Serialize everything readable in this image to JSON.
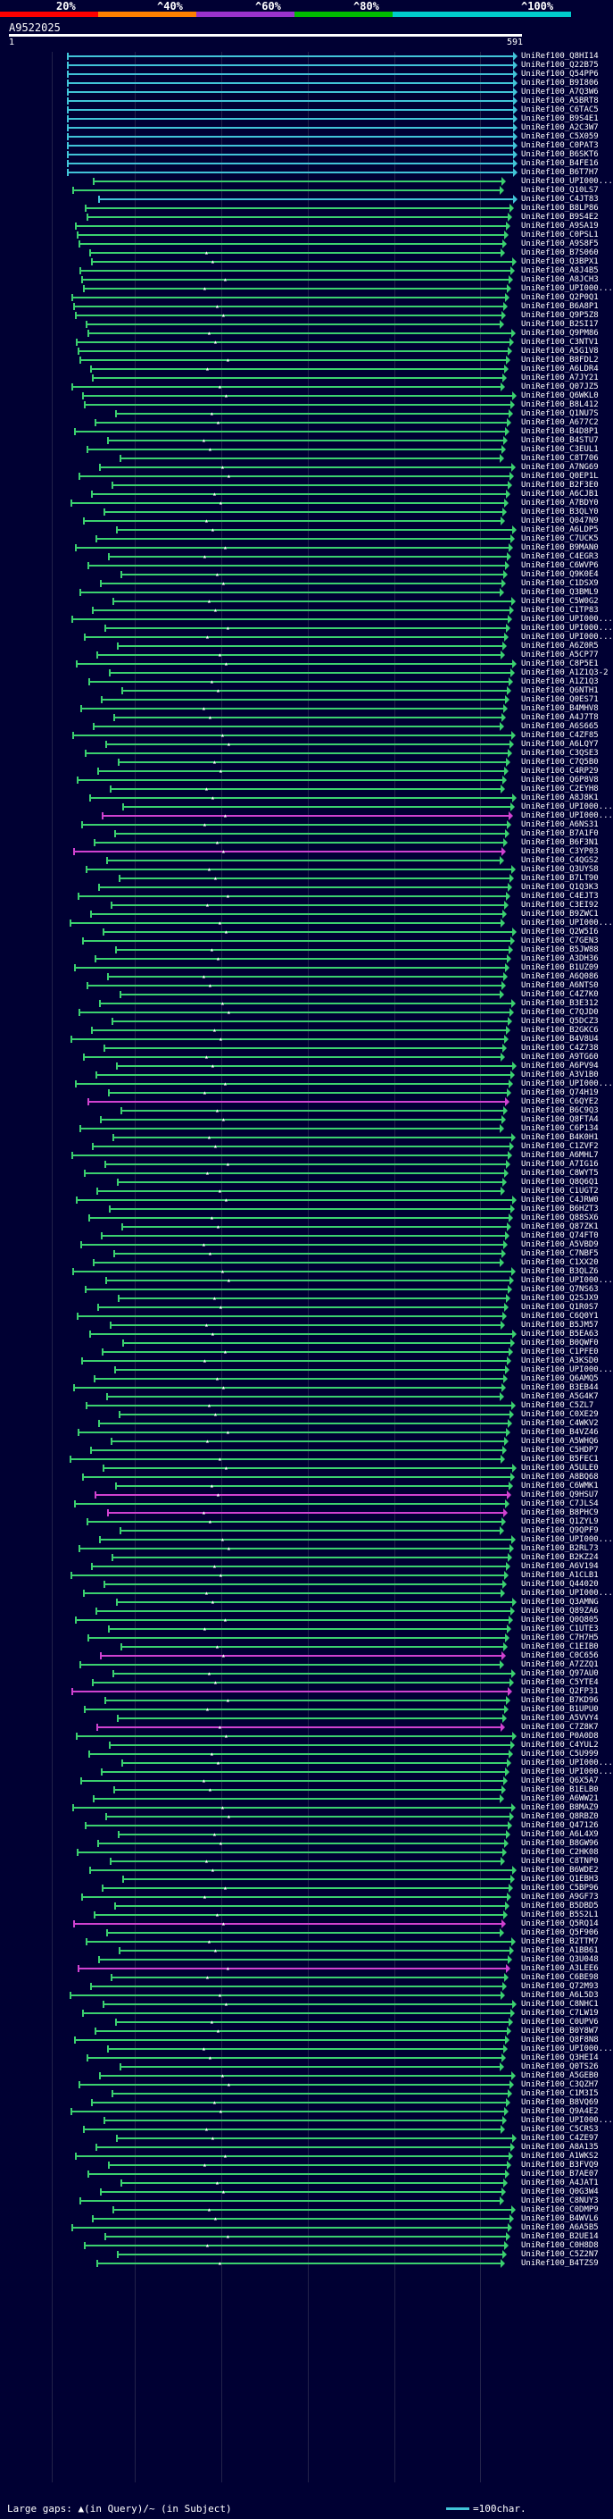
{
  "scale": {
    "labels": [
      "20%",
      "^40%",
      "^60%",
      "^80%",
      "^100%"
    ],
    "colors": [
      "#ff0000",
      "#ff8000",
      "#9933cc",
      "#00bb00",
      "#00cccc"
    ]
  },
  "query": {
    "id": "A9522025",
    "start": "1",
    "end": "591"
  },
  "colors": {
    "cyan": "#41c4d8",
    "green": "#3bd16f",
    "magenta": "#d042d0",
    "background": "#000033"
  },
  "hits": [
    "UniRef100_Q8HI14",
    "UniRef100_Q22B75",
    "UniRef100_Q54PP6",
    "UniRef100_B9I806",
    "UniRef100_A7Q3W6",
    "UniRef100_A5BRT8",
    "UniRef100_C6TAC5",
    "UniRef100_B9S4E1",
    "UniRef100_A2C3W7",
    "UniRef100_C5X059",
    "UniRef100_C0PAT3",
    "UniRef100_B6SKT6",
    "UniRef100_B4FE16",
    "UniRef100_B6T7H7",
    "UniRef100_UPI000...",
    "UniRef100_Q10LS7",
    "UniRef100_C4JT83",
    "UniRef100_B8LP86",
    "UniRef100_B9S4E2",
    "UniRef100_A9SA19",
    "UniRef100_C0PSL1",
    "UniRef100_A9S8F5",
    "UniRef100_B7S060",
    "UniRef100_Q3BPX1",
    "UniRef100_A8J4B5",
    "UniRef100_A8JCH3",
    "UniRef100_UPI000...",
    "UniRef100_Q2P0Q1",
    "UniRef100_B6A8P1",
    "UniRef100_Q9P5Z8",
    "UniRef100_B2SI17",
    "UniRef100_Q9PM86",
    "UniRef100_C3NTV1",
    "UniRef100_A5G1V8",
    "UniRef100_B8FDL2",
    "UniRef100_A6LDR4",
    "UniRef100_A7JY21",
    "UniRef100_Q07JZ5",
    "UniRef100_Q6WKL0",
    "UniRef100_B8L412",
    "UniRef100_Q1NU7S",
    "UniRef100_A677C2",
    "UniRef100_B4D8P1",
    "UniRef100_B4STU7",
    "UniRef100_C3EUL1",
    "UniRef100_C8T706",
    "UniRef100_A7NG69",
    "UniRef100_Q0EP1L",
    "UniRef100_B2F3E0",
    "UniRef100_A6CJB1",
    "UniRef100_A7BDY0",
    "UniRef100_B3QLY0",
    "UniRef100_Q047N9",
    "UniRef100_A6LDP5",
    "UniRef100_C7UCK5",
    "UniRef100_B9MAN0",
    "UniRef100_C4EGR3",
    "UniRef100_C6WVP6",
    "UniRef100_Q9K0E4",
    "UniRef100_C1DSX9",
    "UniRef100_Q3BML9",
    "UniRef100_C5W0G2",
    "UniRef100_C1TP83",
    "UniRef100_UPI000...",
    "UniRef100_UPI000...",
    "UniRef100_UPI000...",
    "UniRef100_A6Z0R5",
    "UniRef100_A5CP77",
    "UniRef100_C8P5E1",
    "UniRef100_A1Z1Q3-2",
    "UniRef100_A1Z1Q3",
    "UniRef100_Q6NTH1",
    "UniRef100_Q0ES71",
    "UniRef100_B4MHV8",
    "UniRef100_A4J7T8",
    "UniRef100_A6S665",
    "UniRef100_C4ZF85",
    "UniRef100_A6LQY7",
    "UniRef100_C3QSE3",
    "UniRef100_C7Q5B0",
    "UniRef100_C4RP29",
    "UniRef100_Q6P8V8",
    "UniRef100_C2EYH8",
    "UniRef100_A8J8K1",
    "UniRef100_UPI000...",
    "UniRef100_UPI000...",
    "UniRef100_A6NS31",
    "UniRef100_B7A1F0",
    "UniRef100_B6F3N1",
    "UniRef100_C3YP03",
    "UniRef100_C4QGS2",
    "UniRef100_Q3UYS8",
    "UniRef100_B7LT90",
    "UniRef100_Q1Q3K3",
    "UniRef100_C4EJT3",
    "UniRef100_C3EI92",
    "UniRef100_B9ZWC1",
    "UniRef100_UPI000...",
    "UniRef100_Q2W5I6",
    "UniRef100_C7GEN3",
    "UniRef100_B5JW88",
    "UniRef100_A3DH36",
    "UniRef100_B1UZ09",
    "UniRef100_A6Q086",
    "UniRef100_A6NTS0",
    "UniRef100_C4Z7K0",
    "UniRef100_B3E312",
    "UniRef100_C7QJD0",
    "UniRef100_Q5DCZ3",
    "UniRef100_B2GKC6",
    "UniRef100_B4V8U4",
    "UniRef100_C4Z738",
    "UniRef100_A9TG60",
    "UniRef100_A6PV94",
    "UniRef100_A3V1B0",
    "UniRef100_UPI000...",
    "UniRef100_Q74H19",
    "UniRef100_C6QYE2",
    "UniRef100_B6C9Q3",
    "UniRef100_Q8FTA4",
    "UniRef100_C6P134",
    "UniRef100_B4K0H1",
    "UniRef100_C1ZVF2",
    "UniRef100_A6MHL7",
    "UniRef100_A7IG16",
    "UniRef100_C8WYT5",
    "UniRef100_Q8Q6Q1",
    "UniRef100_C1UGT2",
    "UniRef100_C4JRW0",
    "UniRef100_B6HZT3",
    "UniRef100_Q88SX6",
    "UniRef100_Q87ZK1",
    "UniRef100_Q74FT0",
    "UniRef100_A5VBD9",
    "UniRef100_C7NBF5",
    "UniRef100_C1XX20",
    "UniRef100_B3QLZ6",
    "UniRef100_UPI000...",
    "UniRef100_Q7NS63",
    "UniRef100_Q2SJX9",
    "UniRef100_Q1R0S7",
    "UniRef100_C6Q0Y1",
    "UniRef100_B5JM57",
    "UniRef100_B5EA63",
    "UniRef100_B0QWF0",
    "UniRef100_C1PFE0",
    "UniRef100_A3KSD0",
    "UniRef100_UPI000...",
    "UniRef100_Q6AMQ5",
    "UniRef100_B3EB44",
    "UniRef100_A5G4K7",
    "UniRef100_C5ZL7",
    "UniRef100_C0XE29",
    "UniRef100_C4WKV2",
    "UniRef100_B4VZ46",
    "UniRef100_A5WHQ6",
    "UniRef100_C5HDP7",
    "UniRef100_B5FEC1",
    "UniRef100_A5ULE0",
    "UniRef100_A8BQ68",
    "UniRef100_C6WMK1",
    "UniRef100_Q9HSU7",
    "UniRef100_C7JLS4",
    "UniRef100_B8PHC9",
    "UniRef100_Q1ZYL9",
    "UniRef100_Q9QPF9",
    "UniRef100_UPI000...",
    "UniRef100_B2RL73",
    "UniRef100_B2KZ24",
    "UniRef100_A6V194",
    "UniRef100_A1CLB1",
    "UniRef100_Q44020",
    "UniRef100_UPI000...",
    "UniRef100_Q3AMNG",
    "UniRef100_Q89ZA6",
    "UniRef100_Q0Q805",
    "UniRef100_C1UTE3",
    "UniRef100_C7H7H5",
    "UniRef100_C1EIB0",
    "UniRef100_C0C656",
    "UniRef100_A7ZZQ1",
    "UniRef100_Q97AU0",
    "UniRef100_C5YTE4",
    "UniRef100_Q2FP31",
    "UniRef100_B7KD96",
    "UniRef100_B1UPU0",
    "UniRef100_A5VVY4",
    "UniRef100_C7Z8K7",
    "UniRef100_P0A0D8",
    "UniRef100_C4YUL2",
    "UniRef100_C5U999",
    "UniRef100_UPI000...",
    "UniRef100_UPI000...",
    "UniRef100_Q6X5A7",
    "UniRef100_B1ELB0",
    "UniRef100_A6WW21",
    "UniRef100_B8MAZ9",
    "UniRef100_Q8RBZ0",
    "UniRef100_Q47126",
    "UniRef100_A6L4X9",
    "UniRef100_B8GW96",
    "UniRef100_C2HK08",
    "UniRef100_C8TNP0",
    "UniRef100_B6WDE2",
    "UniRef100_Q1EBH3",
    "UniRef100_C5BP96",
    "UniRef100_A9GF73",
    "UniRef100_B5DBD5",
    "UniRef100_B5S2L1",
    "UniRef100_Q5RQ14",
    "UniRef100_Q5F906",
    "UniRef100_B2TTM7",
    "UniRef100_A1BB61",
    "UniRef100_Q3U048",
    "UniRef100_A3LEE6",
    "UniRef100_C6BE98",
    "UniRef100_Q72M93",
    "UniRef100_A6L5D3",
    "UniRef100_C8NHC1",
    "UniRef100_C7LW19",
    "UniRef100_C0UPV6",
    "UniRef100_B0Y8W7",
    "UniRef100_Q8F8N8",
    "UniRef100_UPI000...",
    "UniRef100_Q3HEI4",
    "UniRef100_Q0TS26",
    "UniRef100_A5GEB0",
    "UniRef100_C3QZH7",
    "UniRef100_C1M3I5",
    "UniRef100_B8VQ69",
    "UniRef100_Q9A4E2",
    "UniRef100_UPI000...",
    "UniRef100_C5CRS3",
    "UniRef100_C4ZE97",
    "UniRef100_A8A135",
    "UniRef100_A1WKS2",
    "UniRef100_B3FVQ9",
    "UniRef100_B7AE07",
    "UniRef100_A4JAT1",
    "UniRef100_Q0G3W4",
    "UniRef100_C8NUY3",
    "UniRef100_C0DMP9",
    "UniRef100_B4WVL6",
    "UniRef100_A6A5B5",
    "UniRef100_B2UE14",
    "UniRef100_C0H8D8",
    "UniRef100_C5Z2N7",
    "UniRef100_B4TZS9"
  ],
  "footer": {
    "legend_left": "Large gaps: ▲(in Query)/~ (in Subject)",
    "legend_right": "=100char."
  }
}
